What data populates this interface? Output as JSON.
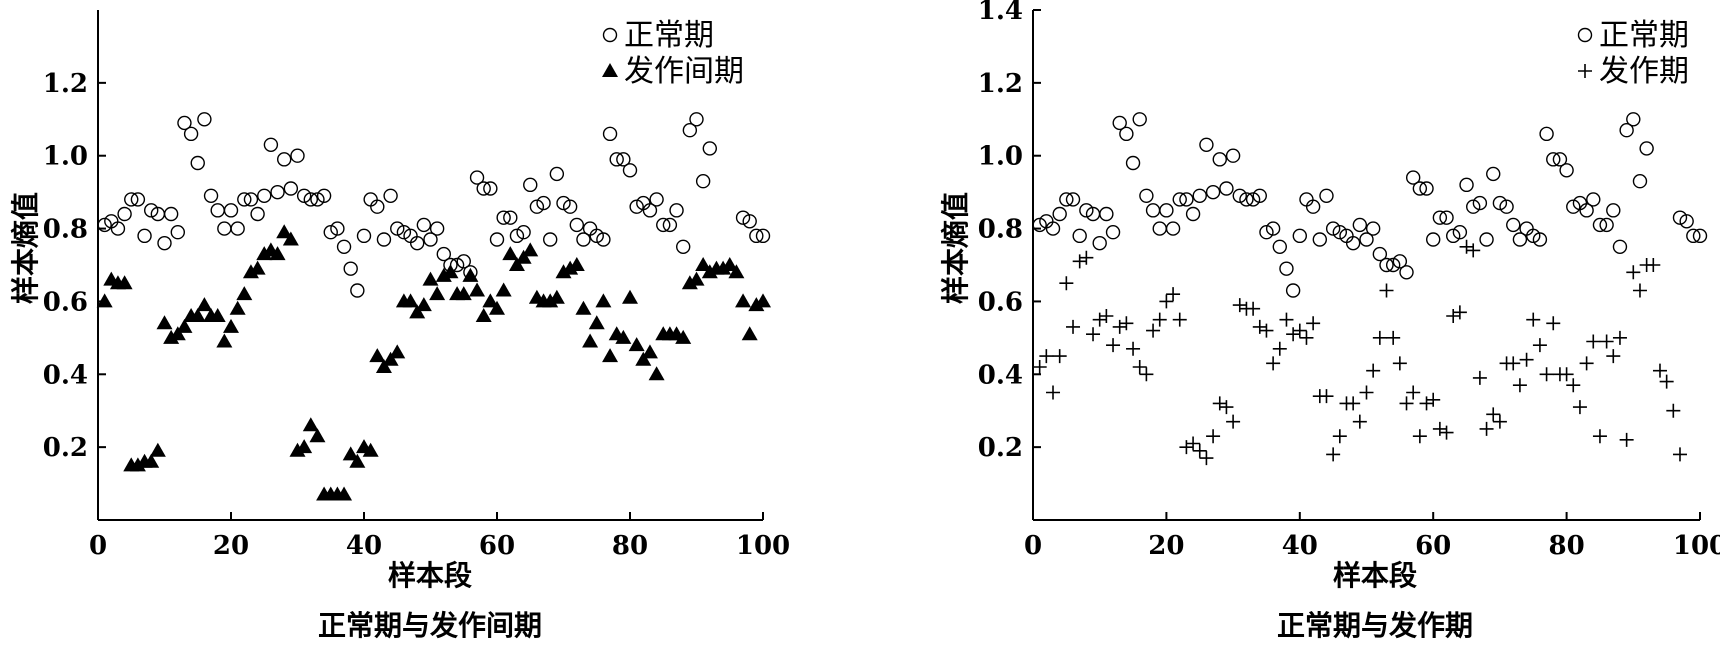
{
  "chart_data": [
    {
      "type": "scatter",
      "title": "正常期与发作间期",
      "xlabel": "样本段",
      "ylabel": "样本熵值",
      "xlim": [
        0,
        100
      ],
      "ylim": [
        0,
        1.4
      ],
      "xticks": [
        "0",
        "20",
        "40",
        "60",
        "80",
        "100"
      ],
      "yticks": [
        "0.2",
        "0.4",
        "0.6",
        "0.8",
        "1.0",
        "1.2"
      ],
      "legend_position": "top-right",
      "series": [
        {
          "name": "正常期",
          "marker": "circle",
          "x": [
            1,
            2,
            3,
            4,
            5,
            6,
            7,
            8,
            9,
            10,
            11,
            12,
            13,
            14,
            15,
            16,
            17,
            18,
            19,
            20,
            21,
            22,
            23,
            24,
            25,
            26,
            27,
            28,
            29,
            30,
            31,
            32,
            33,
            34,
            35,
            36,
            37,
            38,
            39,
            40,
            41,
            42,
            43,
            44,
            45,
            46,
            47,
            48,
            49,
            50,
            51,
            52,
            53,
            54,
            55,
            56,
            57,
            58,
            59,
            60,
            61,
            62,
            63,
            64,
            65,
            66,
            67,
            68,
            69,
            70,
            71,
            72,
            73,
            74,
            75,
            76,
            77,
            78,
            79,
            80,
            81,
            82,
            83,
            84,
            85,
            86,
            87,
            88,
            89,
            90,
            91,
            92,
            93,
            94,
            95,
            96,
            97,
            98,
            99,
            100
          ],
          "y": [
            0.81,
            0.82,
            0.8,
            0.84,
            0.88,
            0.88,
            0.78,
            0.85,
            0.84,
            0.76,
            0.84,
            0.79,
            1.09,
            1.06,
            0.98,
            1.1,
            0.89,
            0.85,
            0.8,
            0.85,
            0.8,
            0.88,
            0.88,
            0.84,
            0.89,
            1.03,
            0.9,
            0.99,
            0.91,
            1.0,
            0.89,
            0.88,
            0.88,
            0.89,
            0.79,
            0.8,
            0.75,
            0.69,
            0.63,
            0.78,
            0.88,
            0.86,
            0.77,
            0.89,
            0.8,
            0.79,
            0.78,
            0.76,
            0.81,
            0.77,
            0.8,
            0.73,
            0.7,
            0.7,
            0.71,
            0.68,
            0.94,
            0.91,
            0.91,
            0.77,
            0.83,
            0.83,
            0.78,
            0.79,
            0.92,
            0.86,
            0.87,
            0.77,
            0.95,
            0.87,
            0.86,
            0.81,
            0.77,
            0.8,
            0.78,
            0.77,
            1.06,
            0.99,
            0.99,
            0.96,
            0.86,
            0.87,
            0.85,
            0.88,
            0.81,
            0.81,
            0.85,
            0.75,
            1.07,
            1.1,
            0.93,
            1.02,
            null,
            null,
            null,
            null,
            0.83,
            0.82,
            0.78,
            0.78
          ]
        },
        {
          "name": "发作间期",
          "marker": "triangle",
          "x": [
            1,
            2,
            3,
            4,
            5,
            6,
            7,
            8,
            9,
            10,
            11,
            12,
            13,
            14,
            15,
            16,
            17,
            18,
            19,
            20,
            21,
            22,
            23,
            24,
            25,
            26,
            27,
            28,
            29,
            30,
            31,
            32,
            33,
            34,
            35,
            36,
            37,
            38,
            39,
            40,
            41,
            42,
            43,
            44,
            45,
            46,
            47,
            48,
            49,
            50,
            51,
            52,
            53,
            54,
            55,
            56,
            57,
            58,
            59,
            60,
            61,
            62,
            63,
            64,
            65,
            66,
            67,
            68,
            69,
            70,
            71,
            72,
            73,
            74,
            75,
            76,
            77,
            78,
            79,
            80,
            81,
            82,
            83,
            84,
            85,
            86,
            87,
            88,
            89,
            90,
            91,
            92,
            93,
            94,
            95,
            96,
            97,
            98,
            99,
            100
          ],
          "y": [
            0.6,
            0.66,
            0.65,
            0.65,
            0.15,
            0.15,
            0.16,
            0.16,
            0.19,
            0.54,
            0.5,
            0.51,
            0.53,
            0.56,
            0.56,
            0.59,
            0.56,
            0.56,
            0.49,
            0.53,
            0.58,
            0.62,
            0.68,
            0.69,
            0.73,
            0.74,
            0.73,
            0.79,
            0.77,
            0.19,
            0.2,
            0.26,
            0.23,
            0.07,
            0.07,
            0.07,
            0.07,
            0.18,
            0.16,
            0.2,
            0.19,
            0.45,
            0.42,
            0.44,
            0.46,
            0.6,
            0.6,
            0.57,
            0.59,
            0.66,
            0.62,
            0.67,
            0.68,
            0.62,
            0.62,
            0.67,
            0.63,
            0.56,
            0.6,
            0.58,
            0.63,
            0.73,
            0.7,
            0.72,
            0.74,
            0.61,
            0.6,
            0.6,
            0.61,
            0.68,
            0.69,
            0.7,
            0.58,
            0.49,
            0.54,
            0.6,
            0.45,
            0.51,
            0.5,
            0.61,
            0.48,
            0.44,
            0.46,
            0.4,
            0.51,
            0.51,
            0.51,
            0.5,
            0.65,
            0.66,
            0.7,
            0.68,
            0.69,
            0.69,
            0.7,
            0.68,
            0.6,
            0.51,
            0.59,
            0.6
          ]
        }
      ]
    },
    {
      "type": "scatter",
      "title": "正常期与发作期",
      "xlabel": "样本段",
      "ylabel": "样本熵值",
      "xlim": [
        0,
        100
      ],
      "ylim": [
        0,
        1.4
      ],
      "xticks": [
        "0",
        "20",
        "40",
        "60",
        "80",
        "100"
      ],
      "yticks": [
        "0.2",
        "0.4",
        "0.6",
        "0.8",
        "1.0",
        "1.2",
        "1.4"
      ],
      "legend_position": "top-right",
      "series": [
        {
          "name": "正常期",
          "marker": "circle",
          "x": [
            1,
            2,
            3,
            4,
            5,
            6,
            7,
            8,
            9,
            10,
            11,
            12,
            13,
            14,
            15,
            16,
            17,
            18,
            19,
            20,
            21,
            22,
            23,
            24,
            25,
            26,
            27,
            28,
            29,
            30,
            31,
            32,
            33,
            34,
            35,
            36,
            37,
            38,
            39,
            40,
            41,
            42,
            43,
            44,
            45,
            46,
            47,
            48,
            49,
            50,
            51,
            52,
            53,
            54,
            55,
            56,
            57,
            58,
            59,
            60,
            61,
            62,
            63,
            64,
            65,
            66,
            67,
            68,
            69,
            70,
            71,
            72,
            73,
            74,
            75,
            76,
            77,
            78,
            79,
            80,
            81,
            82,
            83,
            84,
            85,
            86,
            87,
            88,
            89,
            90,
            91,
            92,
            93,
            94,
            95,
            96,
            97,
            98,
            99,
            100
          ],
          "y": [
            0.81,
            0.82,
            0.8,
            0.84,
            0.88,
            0.88,
            0.78,
            0.85,
            0.84,
            0.76,
            0.84,
            0.79,
            1.09,
            1.06,
            0.98,
            1.1,
            0.89,
            0.85,
            0.8,
            0.85,
            0.8,
            0.88,
            0.88,
            0.84,
            0.89,
            1.03,
            0.9,
            0.99,
            0.91,
            1.0,
            0.89,
            0.88,
            0.88,
            0.89,
            0.79,
            0.8,
            0.75,
            0.69,
            0.63,
            0.78,
            0.88,
            0.86,
            0.77,
            0.89,
            0.8,
            0.79,
            0.78,
            0.76,
            0.81,
            0.77,
            0.8,
            0.73,
            0.7,
            0.7,
            0.71,
            0.68,
            0.94,
            0.91,
            0.91,
            0.77,
            0.83,
            0.83,
            0.78,
            0.79,
            0.92,
            0.86,
            0.87,
            0.77,
            0.95,
            0.87,
            0.86,
            0.81,
            0.77,
            0.8,
            0.78,
            0.77,
            1.06,
            0.99,
            0.99,
            0.96,
            0.86,
            0.87,
            0.85,
            0.88,
            0.81,
            0.81,
            0.85,
            0.75,
            1.07,
            1.1,
            0.93,
            1.02,
            null,
            null,
            null,
            null,
            0.83,
            0.82,
            0.78,
            0.78
          ]
        },
        {
          "name": "发作期",
          "marker": "plus",
          "x": [
            1,
            2,
            3,
            4,
            5,
            6,
            7,
            8,
            9,
            10,
            11,
            12,
            13,
            14,
            15,
            16,
            17,
            18,
            19,
            20,
            21,
            22,
            23,
            24,
            25,
            26,
            27,
            28,
            29,
            30,
            31,
            32,
            33,
            34,
            35,
            36,
            37,
            38,
            39,
            40,
            41,
            42,
            43,
            44,
            45,
            46,
            47,
            48,
            49,
            50,
            51,
            52,
            53,
            54,
            55,
            56,
            57,
            58,
            59,
            60,
            61,
            62,
            63,
            64,
            65,
            66,
            67,
            68,
            69,
            70,
            71,
            72,
            73,
            74,
            75,
            76,
            77,
            78,
            79,
            80,
            81,
            82,
            83,
            84,
            85,
            86,
            87,
            88,
            89,
            90,
            91,
            92,
            93,
            94,
            95,
            96,
            97,
            98,
            99,
            100
          ],
          "y": [
            0.42,
            0.45,
            0.35,
            0.45,
            0.65,
            0.53,
            0.71,
            0.72,
            0.51,
            0.55,
            0.56,
            0.48,
            0.53,
            0.54,
            0.47,
            0.42,
            0.4,
            0.52,
            0.55,
            0.6,
            0.62,
            0.55,
            0.2,
            0.21,
            0.19,
            0.17,
            0.23,
            0.32,
            0.31,
            0.27,
            0.59,
            0.58,
            0.58,
            0.53,
            0.52,
            0.43,
            0.47,
            0.55,
            0.51,
            0.52,
            0.5,
            0.54,
            0.34,
            0.34,
            0.18,
            0.23,
            0.32,
            0.32,
            0.27,
            0.35,
            0.41,
            0.5,
            0.63,
            0.5,
            0.43,
            0.32,
            0.35,
            0.23,
            0.32,
            0.33,
            0.25,
            0.24,
            0.56,
            0.57,
            0.75,
            0.74,
            0.39,
            0.25,
            0.29,
            0.27,
            0.43,
            0.43,
            0.37,
            0.44,
            0.55,
            0.48,
            0.4,
            0.54,
            0.4,
            0.4,
            0.37,
            0.31,
            0.43,
            0.49,
            0.23,
            0.49,
            0.45,
            0.5,
            0.22,
            0.68,
            0.63,
            0.7,
            0.7,
            0.41,
            0.38,
            0.3,
            0.18,
            null,
            null,
            null
          ]
        }
      ]
    }
  ]
}
